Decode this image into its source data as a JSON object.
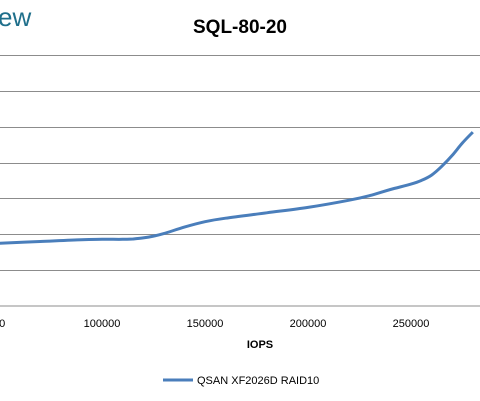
{
  "logo": {
    "text": "ew"
  },
  "chart_data": {
    "type": "line",
    "title": "SQL-80-20",
    "xlabel": "IOPS",
    "ylabel": "",
    "x_ticks": [
      100000,
      150000,
      200000,
      250000
    ],
    "x_tick_labels": [
      "100000",
      "150000",
      "200000",
      "250000"
    ],
    "xlim": [
      50000,
      280000
    ],
    "ylim": [
      0,
      8
    ],
    "y_gridlines": [
      1,
      2,
      3,
      4,
      5,
      6,
      7
    ],
    "grid": true,
    "legend": "bottom",
    "series": [
      {
        "name": "QSAN XF2026D RAID10",
        "color": "#4a7ebb",
        "x": [
          50000,
          70000,
          90000,
          100000,
          110000,
          115000,
          120000,
          125000,
          130000,
          140000,
          150000,
          160000,
          180000,
          200000,
          220000,
          230000,
          240000,
          250000,
          255000,
          260000,
          265000,
          270000,
          275000,
          280000
        ],
        "y": [
          1.75,
          1.8,
          1.85,
          1.86,
          1.86,
          1.87,
          1.9,
          1.95,
          2.02,
          2.2,
          2.35,
          2.45,
          2.6,
          2.75,
          2.95,
          3.08,
          3.25,
          3.4,
          3.5,
          3.65,
          3.9,
          4.2,
          4.55,
          4.85
        ]
      }
    ]
  }
}
